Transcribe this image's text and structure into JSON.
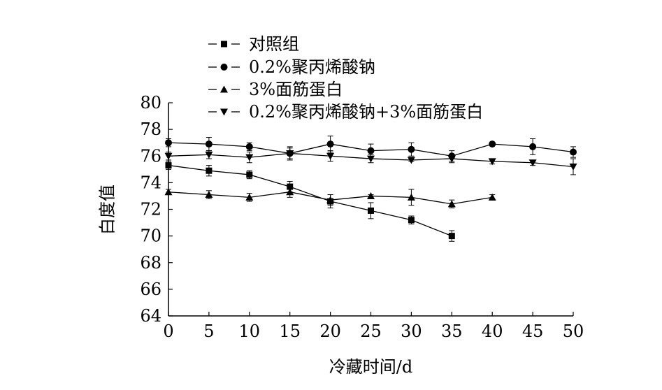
{
  "chart_data": {
    "type": "line",
    "xlabel": "冷藏时间/d",
    "ylabel": "白度值",
    "xlim": [
      0,
      50
    ],
    "ylim": [
      64,
      80
    ],
    "x_ticks": [
      0,
      5,
      10,
      15,
      20,
      25,
      30,
      35,
      40,
      45,
      50
    ],
    "y_ticks": [
      64,
      66,
      68,
      70,
      72,
      74,
      76,
      78,
      80
    ],
    "grid": false,
    "legend_position": "top",
    "series": [
      {
        "name": "对照组",
        "marker": "square",
        "x": [
          0,
          5,
          10,
          15,
          20,
          25,
          30,
          35
        ],
        "y": [
          75.3,
          74.9,
          74.6,
          73.7,
          72.6,
          71.9,
          71.2,
          70.0
        ],
        "err": [
          0.3,
          0.4,
          0.3,
          0.4,
          0.5,
          0.6,
          0.3,
          0.4
        ]
      },
      {
        "name": "0.2%聚丙烯酸钠",
        "marker": "circle",
        "x": [
          0,
          5,
          10,
          15,
          20,
          25,
          30,
          35,
          40,
          45,
          50
        ],
        "y": [
          77.0,
          76.9,
          76.7,
          76.2,
          76.9,
          76.4,
          76.5,
          76.0,
          76.9,
          76.7,
          76.3
        ],
        "err": [
          0.3,
          0.5,
          0.3,
          0.4,
          0.6,
          0.5,
          0.5,
          0.4,
          0.1,
          0.6,
          0.4
        ]
      },
      {
        "name": "3%面筋蛋白",
        "marker": "triangle-up",
        "x": [
          0,
          5,
          10,
          15,
          20,
          25,
          30,
          35,
          40
        ],
        "y": [
          73.3,
          73.1,
          72.9,
          73.3,
          72.7,
          73.0,
          72.9,
          72.4,
          72.9
        ],
        "err": [
          0.2,
          0.3,
          0.3,
          0.4,
          0.4,
          0.1,
          0.6,
          0.3,
          0.2
        ]
      },
      {
        "name": "0.2%聚丙烯酸钠+3%面筋蛋白",
        "marker": "triangle-down",
        "x": [
          0,
          5,
          10,
          15,
          20,
          25,
          30,
          35,
          40,
          45,
          50
        ],
        "y": [
          76.0,
          76.1,
          75.9,
          76.2,
          76.0,
          75.8,
          75.7,
          75.8,
          75.6,
          75.5,
          75.2
        ],
        "err": [
          0.3,
          0.3,
          0.4,
          0.5,
          0.4,
          0.3,
          0.1,
          0.3,
          0.2,
          0.2,
          0.6
        ]
      }
    ]
  }
}
